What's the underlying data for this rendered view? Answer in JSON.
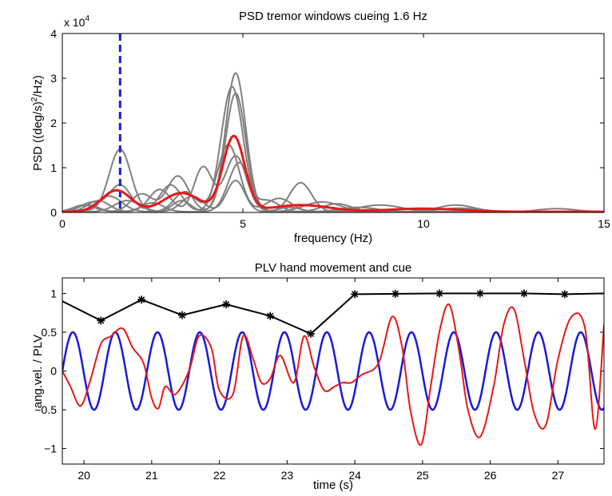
{
  "chart_data": [
    {
      "type": "line",
      "title": "PSD tremor windows cueing 1.6 Hz",
      "xlabel": "frequency (Hz)",
      "ylabel": "PSD ((deg/s)²/Hz)",
      "ylabel_main": "PSD ((deg/s)",
      "ylabel_sup": "2",
      "ylabel_tail": "/Hz)",
      "exponent_prefix": "x 10",
      "exponent_power": "4",
      "xlim": [
        0,
        15
      ],
      "ylim": [
        0,
        40000
      ],
      "xticks": [
        0,
        5,
        10,
        15
      ],
      "xtick_labels": [
        "0",
        "5",
        "10",
        "15"
      ],
      "yticks": [
        0,
        10000,
        20000,
        30000,
        40000
      ],
      "ytick_labels": [
        "0",
        "1",
        "2",
        "3",
        "4"
      ],
      "cue_line": {
        "x": 1.6,
        "color": "#1a1adb",
        "style": "dashed"
      },
      "colors": {
        "windows": "#808080",
        "mean": "#e81818"
      },
      "window_series": [
        {
          "peaks": [
            [
              0.5,
              300,
              0.25
            ],
            [
              1.6,
              14000,
              0.3
            ],
            [
              3.3,
              2500,
              0.25
            ],
            [
              4.8,
              31000,
              0.28
            ],
            [
              6.3,
              1000,
              0.3
            ]
          ]
        },
        {
          "peaks": [
            [
              0.8,
              2000,
              0.3
            ],
            [
              1.6,
              6000,
              0.3
            ],
            [
              3.0,
              6000,
              0.3
            ],
            [
              4.7,
              28000,
              0.3
            ],
            [
              5.7,
              2500,
              0.3
            ]
          ]
        },
        {
          "peaks": [
            [
              0.6,
              1500,
              0.3
            ],
            [
              2.2,
              4000,
              0.3
            ],
            [
              3.2,
              8000,
              0.3
            ],
            [
              4.8,
              26500,
              0.28
            ],
            [
              8.2,
              1000,
              0.5
            ]
          ]
        },
        {
          "peaks": [
            [
              1.0,
              2500,
              0.3
            ],
            [
              2.7,
              5000,
              0.3
            ],
            [
              3.9,
              10000,
              0.25
            ],
            [
              4.8,
              12500,
              0.3
            ],
            [
              6.6,
              6500,
              0.3
            ],
            [
              10.9,
              1500,
              0.5
            ]
          ]
        },
        {
          "peaks": [
            [
              1.3,
              3500,
              0.35
            ],
            [
              3.4,
              4500,
              0.3
            ],
            [
              4.6,
              15000,
              0.3
            ],
            [
              6.0,
              3000,
              0.35
            ],
            [
              8.8,
              1500,
              0.6
            ]
          ]
        },
        {
          "peaks": [
            [
              0.7,
              1500,
              0.3
            ],
            [
              2.5,
              2000,
              0.3
            ],
            [
              4.9,
              11000,
              0.3
            ],
            [
              7.6,
              1800,
              0.4
            ],
            [
              13.7,
              700,
              0.5
            ]
          ]
        },
        {
          "peaks": [
            [
              1.8,
              2500,
              0.35
            ],
            [
              3.6,
              3500,
              0.3
            ],
            [
              4.8,
              7000,
              0.25
            ],
            [
              7.2,
              2200,
              0.5
            ],
            [
              11.0,
              800,
              0.6
            ]
          ]
        }
      ],
      "mean_series": {
        "peaks": [
          [
            1.5,
            4800,
            0.4
          ],
          [
            3.3,
            4200,
            0.5
          ],
          [
            4.75,
            16800,
            0.3
          ],
          [
            6.6,
            1500,
            0.8
          ],
          [
            10.0,
            700,
            1.0
          ]
        ]
      }
    },
    {
      "type": "line",
      "title": "PLV hand movement and cue",
      "xlabel": "time (s)",
      "ylabel": "ang.vel. / PLV",
      "xlim": [
        19.68,
        27.68
      ],
      "ylim": [
        -1.2,
        1.2
      ],
      "xticks": [
        20,
        21,
        22,
        23,
        24,
        25,
        26,
        27
      ],
      "xtick_labels": [
        "20",
        "21",
        "22",
        "23",
        "24",
        "25",
        "26",
        "27"
      ],
      "yticks": [
        -1,
        -0.5,
        0,
        0.5,
        1
      ],
      "ytick_labels": [
        "−1",
        "−0.5",
        "0",
        "0.5",
        "1"
      ],
      "colors": {
        "cue": "#1a1adb",
        "movement": "#e81818",
        "plv": "#000000"
      },
      "cue_signal": {
        "amplitude": 0.5,
        "frequency_hz": 1.6,
        "t0": 19.68
      },
      "plv_series": {
        "x": [
          19.68,
          20.25,
          20.85,
          21.45,
          22.1,
          22.75,
          23.35,
          24.0,
          24.6,
          25.25,
          25.85,
          26.5,
          27.1,
          27.68
        ],
        "y": [
          0.9,
          0.65,
          0.92,
          0.72,
          0.86,
          0.71,
          0.48,
          0.99,
          0.995,
          1.0,
          1.0,
          1.0,
          0.99,
          1.0
        ],
        "markers": [
          false,
          true,
          true,
          true,
          true,
          true,
          true,
          true,
          true,
          true,
          true,
          true,
          true,
          false
        ]
      },
      "movement_series": {
        "x": [
          19.68,
          19.8,
          19.95,
          20.1,
          20.25,
          20.4,
          20.57,
          20.72,
          20.88,
          21.0,
          21.1,
          21.2,
          21.35,
          21.55,
          21.7,
          21.88,
          22.0,
          22.2,
          22.35,
          22.5,
          22.62,
          22.75,
          22.9,
          23.1,
          23.25,
          23.4,
          23.55,
          23.7,
          23.82,
          23.95,
          24.1,
          24.35,
          24.55,
          24.7,
          24.82,
          24.98,
          25.12,
          25.26,
          25.4,
          25.55,
          25.67,
          25.85,
          26.05,
          26.2,
          26.35,
          26.5,
          26.65,
          26.82,
          27.0,
          27.2,
          27.4,
          27.55,
          27.68
        ],
        "y": [
          0.0,
          -0.2,
          -0.45,
          -0.1,
          0.35,
          0.45,
          0.55,
          0.3,
          0.1,
          -0.35,
          -0.48,
          -0.2,
          -0.3,
          0.0,
          0.45,
          0.3,
          -0.25,
          -0.3,
          0.45,
          0.15,
          -0.15,
          -0.1,
          0.2,
          -0.15,
          0.45,
          0.05,
          -0.25,
          -0.2,
          -0.15,
          -0.15,
          -0.05,
          0.1,
          0.7,
          0.3,
          -0.5,
          -0.95,
          -0.2,
          0.55,
          0.85,
          0.2,
          -0.5,
          -0.85,
          -0.2,
          0.6,
          0.8,
          0.15,
          -0.55,
          -0.7,
          0.15,
          0.7,
          0.55,
          -0.75,
          0.6
        ]
      }
    }
  ]
}
